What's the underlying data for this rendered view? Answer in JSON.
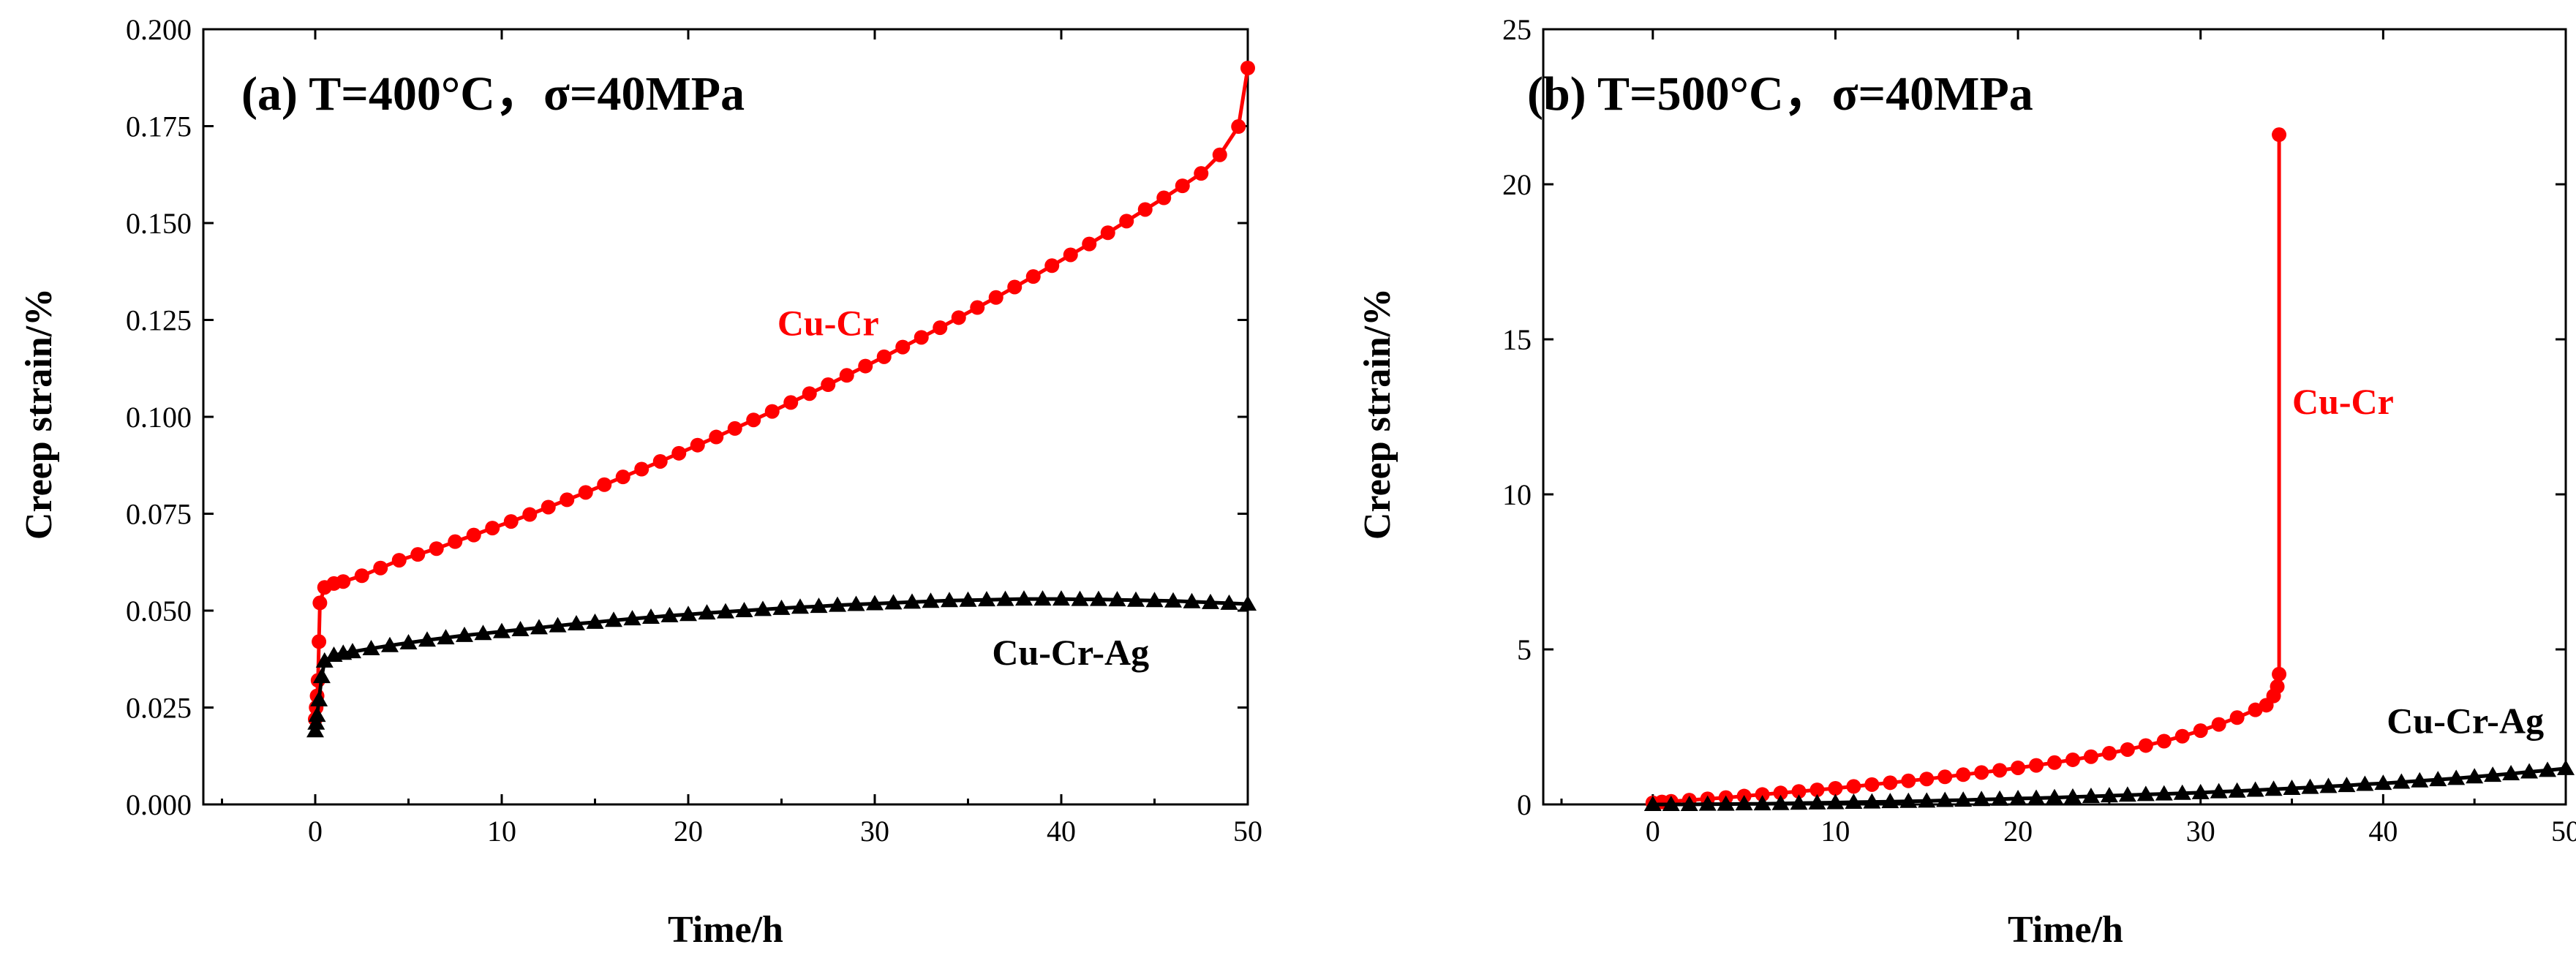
{
  "figure": {
    "panels": 2
  },
  "chart_data": [
    {
      "id": "a",
      "type": "line",
      "title": "(a) T=400°C，σ=40MPa",
      "xlabel": "Time/h",
      "ylabel": "Creep strain/%",
      "xlim": [
        -6,
        50
      ],
      "ylim": [
        0,
        0.2
      ],
      "xticks": [
        0,
        10,
        20,
        30,
        40,
        50
      ],
      "yticks": [
        0.0,
        0.025,
        0.05,
        0.075,
        0.1,
        0.125,
        0.15,
        0.175,
        0.2
      ],
      "ytick_labels": [
        "0.000",
        "0.025",
        "0.050",
        "0.075",
        "0.100",
        "0.125",
        "0.150",
        "0.175",
        "0.200"
      ],
      "grid": false,
      "series": [
        {
          "name": "Cu-Cr",
          "color": "#ff0000",
          "marker": "circle",
          "x": [
            0,
            0.05,
            0.1,
            0.15,
            0.2,
            0.25,
            0.5,
            1,
            1.5,
            2.5,
            3.5,
            4.5,
            5.5,
            6.5,
            7.5,
            8.5,
            9.5,
            10.5,
            11.5,
            12.5,
            13.5,
            14.5,
            15.5,
            16.5,
            17.5,
            18.5,
            19.5,
            20.5,
            21.5,
            22.5,
            23.5,
            24.5,
            25.5,
            26.5,
            27.5,
            28.5,
            29.5,
            30.5,
            31.5,
            32.5,
            33.5,
            34.5,
            35.5,
            36.5,
            37.5,
            38.5,
            39.5,
            40.5,
            41.5,
            42.5,
            43.5,
            44.5,
            45.5,
            46.5,
            47.5,
            48.5,
            49.5,
            50
          ],
          "y": [
            0.022,
            0.025,
            0.028,
            0.032,
            0.042,
            0.052,
            0.056,
            0.057,
            0.0575,
            0.059,
            0.061,
            0.063,
            0.0645,
            0.066,
            0.0678,
            0.0695,
            0.0713,
            0.073,
            0.0748,
            0.0767,
            0.0786,
            0.0805,
            0.0825,
            0.0845,
            0.0865,
            0.0885,
            0.0906,
            0.0927,
            0.0948,
            0.097,
            0.0992,
            0.1014,
            0.1037,
            0.106,
            0.1083,
            0.1107,
            0.1131,
            0.1155,
            0.118,
            0.1205,
            0.123,
            0.1256,
            0.1282,
            0.1308,
            0.1335,
            0.1362,
            0.139,
            0.1418,
            0.1446,
            0.1475,
            0.1505,
            0.1535,
            0.1565,
            0.1596,
            0.1628,
            0.1676,
            0.1749,
            0.19
          ]
        },
        {
          "name": "Cu-Cr-Ag",
          "color": "#000000",
          "marker": "triangle",
          "x": [
            0,
            0.05,
            0.1,
            0.2,
            0.35,
            0.5,
            1,
            1.5,
            2,
            3,
            4,
            5,
            6,
            7,
            8,
            9,
            10,
            11,
            12,
            13,
            14,
            15,
            16,
            17,
            18,
            19,
            20,
            21,
            22,
            23,
            24,
            25,
            26,
            27,
            28,
            29,
            30,
            31,
            32,
            33,
            34,
            35,
            36,
            37,
            38,
            39,
            40,
            41,
            42,
            43,
            44,
            45,
            46,
            47,
            48,
            49,
            50
          ],
          "y": [
            0.019,
            0.021,
            0.023,
            0.027,
            0.033,
            0.037,
            0.0385,
            0.039,
            0.0394,
            0.0402,
            0.041,
            0.0417,
            0.0424,
            0.043,
            0.0436,
            0.0441,
            0.0446,
            0.0451,
            0.0456,
            0.0461,
            0.0466,
            0.047,
            0.0475,
            0.0479,
            0.0483,
            0.0487,
            0.049,
            0.0494,
            0.0497,
            0.05,
            0.0503,
            0.0506,
            0.0509,
            0.0511,
            0.0514,
            0.0516,
            0.0518,
            0.052,
            0.0522,
            0.0524,
            0.0526,
            0.0527,
            0.0528,
            0.0529,
            0.053,
            0.053,
            0.053,
            0.0529,
            0.0529,
            0.0528,
            0.0527,
            0.0526,
            0.0525,
            0.0523,
            0.0521,
            0.0519,
            0.0517
          ]
        }
      ],
      "annotations": [
        {
          "text": "Cu-Cr",
          "x": 27.5,
          "y": 0.121,
          "color": "#ff0000"
        },
        {
          "text": "Cu-Cr-Ag",
          "x": 40.5,
          "y": 0.036,
          "color": "#000000"
        }
      ]
    },
    {
      "id": "b",
      "type": "line",
      "title": "(b) T=500°C，σ=40MPa",
      "xlabel": "Time/h",
      "ylabel": "Creep strain/%",
      "xlim": [
        -6,
        50
      ],
      "ylim": [
        0,
        25
      ],
      "xticks": [
        0,
        10,
        20,
        30,
        40,
        50
      ],
      "yticks": [
        0,
        5,
        10,
        15,
        20,
        25
      ],
      "ytick_labels": [
        "0",
        "5",
        "10",
        "15",
        "20",
        "25"
      ],
      "grid": false,
      "series": [
        {
          "name": "Cu-Cr",
          "color": "#ff0000",
          "marker": "circle",
          "x": [
            0,
            0.5,
            1,
            2,
            3,
            4,
            5,
            6,
            7,
            8,
            9,
            10,
            11,
            12,
            13,
            14,
            15,
            16,
            17,
            18,
            19,
            20,
            21,
            22,
            23,
            24,
            25,
            26,
            27,
            28,
            29,
            30,
            31,
            32,
            33,
            33.6,
            34,
            34.2,
            34.3,
            34.3
          ],
          "y": [
            0.05,
            0.08,
            0.1,
            0.14,
            0.18,
            0.22,
            0.27,
            0.32,
            0.37,
            0.42,
            0.47,
            0.52,
            0.58,
            0.64,
            0.7,
            0.76,
            0.82,
            0.89,
            0.96,
            1.03,
            1.1,
            1.18,
            1.26,
            1.35,
            1.44,
            1.54,
            1.65,
            1.77,
            1.9,
            2.04,
            2.2,
            2.38,
            2.58,
            2.8,
            3.05,
            3.2,
            3.5,
            3.8,
            4.2,
            21.6
          ]
        },
        {
          "name": "Cu-Cr-Ag",
          "color": "#000000",
          "marker": "triangle",
          "x": [
            0,
            1,
            2,
            3,
            4,
            5,
            6,
            7,
            8,
            9,
            10,
            11,
            12,
            13,
            14,
            15,
            16,
            17,
            18,
            19,
            20,
            21,
            22,
            23,
            24,
            25,
            26,
            27,
            28,
            29,
            30,
            31,
            32,
            33,
            34,
            35,
            36,
            37,
            38,
            39,
            40,
            41,
            42,
            43,
            44,
            45,
            46,
            47,
            48,
            49,
            50
          ],
          "y": [
            0.0,
            0.0,
            0.0,
            0.01,
            0.01,
            0.02,
            0.02,
            0.03,
            0.04,
            0.05,
            0.06,
            0.07,
            0.08,
            0.09,
            0.1,
            0.11,
            0.13,
            0.14,
            0.16,
            0.17,
            0.19,
            0.2,
            0.22,
            0.24,
            0.26,
            0.28,
            0.3,
            0.32,
            0.34,
            0.36,
            0.38,
            0.41,
            0.43,
            0.46,
            0.49,
            0.52,
            0.55,
            0.58,
            0.61,
            0.65,
            0.68,
            0.72,
            0.76,
            0.8,
            0.84,
            0.89,
            0.94,
            0.99,
            1.05,
            1.1,
            1.16
          ]
        }
      ],
      "annotations": [
        {
          "text": "Cu-Cr",
          "x": 37.8,
          "y": 12.6,
          "color": "#ff0000"
        },
        {
          "text": "Cu-Cr-Ag",
          "x": 44.5,
          "y": 2.3,
          "color": "#000000"
        }
      ]
    }
  ]
}
